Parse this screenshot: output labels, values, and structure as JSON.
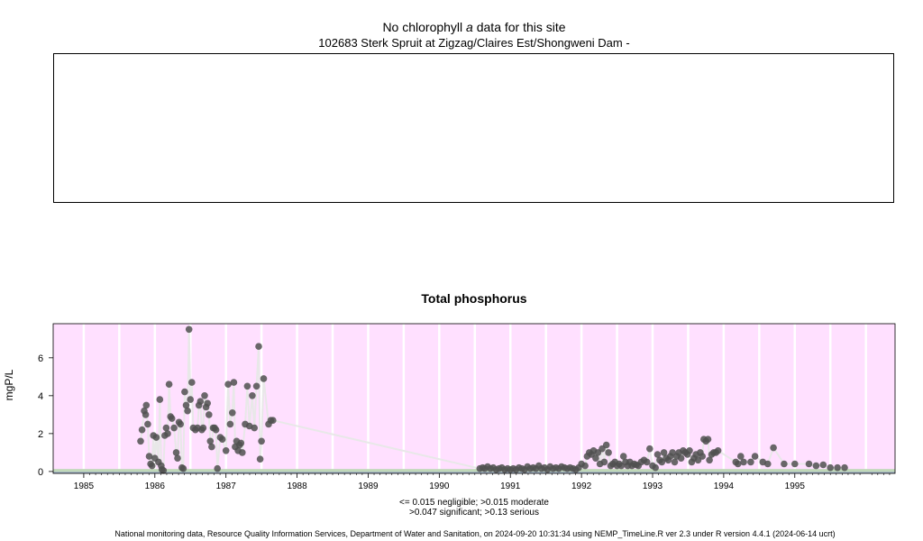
{
  "chlorophyll": {
    "title_prefix": "No chlorophyll",
    "title_italic": "a",
    "title_suffix": "data for this site",
    "subtitle": "102683 Sterk Spruit at Zigzag/Claires Est/Shongweni Dam -"
  },
  "chart_data": {
    "type": "scatter",
    "title": "Total phosphorus",
    "ylabel": "mgP/L",
    "xlabel": "",
    "xlim": [
      1984.57,
      1996.41
    ],
    "ylim": [
      -0.1,
      7.8
    ],
    "x_ticks": [
      1985,
      1986,
      1987,
      1988,
      1989,
      1990,
      1991,
      1992,
      1993,
      1994,
      1995
    ],
    "y_ticks": [
      0,
      2,
      4,
      6
    ],
    "grid": true,
    "background_color": "#ffe0ff",
    "band_colors": {
      "negligible": "#a0b0c8",
      "moderate": "#c0d8b8"
    },
    "point_color": "#505050",
    "line_color": "#e8e8e8",
    "thresholds": [
      0.015,
      0.047,
      0.13
    ],
    "series": [
      {
        "values": [
          [
            1985.8,
            1.6
          ],
          [
            1985.82,
            2.2
          ],
          [
            1985.85,
            3.2
          ],
          [
            1985.87,
            3.0
          ],
          [
            1985.88,
            3.5
          ],
          [
            1985.9,
            2.5
          ],
          [
            1985.92,
            0.8
          ],
          [
            1985.94,
            0.4
          ],
          [
            1985.96,
            0.3
          ],
          [
            1985.98,
            1.9
          ],
          [
            1986.0,
            0.7
          ],
          [
            1986.02,
            1.8
          ],
          [
            1986.05,
            0.5
          ],
          [
            1986.07,
            3.8
          ],
          [
            1986.09,
            0.3
          ],
          [
            1986.1,
            0.1
          ],
          [
            1986.12,
            0.05
          ],
          [
            1986.14,
            1.9
          ],
          [
            1986.16,
            2.3
          ],
          [
            1986.18,
            2.0
          ],
          [
            1986.2,
            4.6
          ],
          [
            1986.22,
            2.9
          ],
          [
            1986.24,
            2.8
          ],
          [
            1986.27,
            2.3
          ],
          [
            1986.3,
            1.0
          ],
          [
            1986.32,
            0.7
          ],
          [
            1986.34,
            2.6
          ],
          [
            1986.36,
            2.5
          ],
          [
            1986.38,
            0.2
          ],
          [
            1986.4,
            0.15
          ],
          [
            1986.42,
            4.2
          ],
          [
            1986.44,
            3.5
          ],
          [
            1986.46,
            3.2
          ],
          [
            1986.48,
            7.5
          ],
          [
            1986.5,
            3.8
          ],
          [
            1986.52,
            4.7
          ],
          [
            1986.54,
            2.3
          ],
          [
            1986.57,
            2.2
          ],
          [
            1986.6,
            2.3
          ],
          [
            1986.62,
            3.5
          ],
          [
            1986.64,
            3.7
          ],
          [
            1986.66,
            2.2
          ],
          [
            1986.68,
            2.3
          ],
          [
            1986.7,
            4.0
          ],
          [
            1986.72,
            3.4
          ],
          [
            1986.74,
            3.6
          ],
          [
            1986.76,
            3.0
          ],
          [
            1986.78,
            1.6
          ],
          [
            1986.8,
            1.3
          ],
          [
            1986.82,
            2.3
          ],
          [
            1986.84,
            2.3
          ],
          [
            1986.86,
            2.2
          ],
          [
            1986.88,
            0.15
          ],
          [
            1986.92,
            1.8
          ],
          [
            1986.95,
            1.7
          ],
          [
            1987.0,
            1.1
          ],
          [
            1987.03,
            4.6
          ],
          [
            1987.06,
            2.5
          ],
          [
            1987.09,
            3.1
          ],
          [
            1987.11,
            4.7
          ],
          [
            1987.13,
            1.3
          ],
          [
            1987.15,
            1.6
          ],
          [
            1987.17,
            1.1
          ],
          [
            1987.19,
            1.4
          ],
          [
            1987.21,
            1.5
          ],
          [
            1987.23,
            1.0
          ],
          [
            1987.27,
            2.5
          ],
          [
            1987.3,
            4.5
          ],
          [
            1987.33,
            2.4
          ],
          [
            1987.37,
            4.0
          ],
          [
            1987.4,
            2.3
          ],
          [
            1987.43,
            4.5
          ],
          [
            1987.46,
            6.6
          ],
          [
            1987.48,
            0.65
          ],
          [
            1987.5,
            1.6
          ],
          [
            1987.53,
            4.9
          ],
          [
            1987.6,
            2.5
          ],
          [
            1987.63,
            2.7
          ],
          [
            1987.66,
            2.7
          ],
          [
            1990.57,
            0.15
          ],
          [
            1990.61,
            0.2
          ],
          [
            1990.64,
            0.15
          ],
          [
            1990.68,
            0.25
          ],
          [
            1990.72,
            0.15
          ],
          [
            1990.76,
            0.2
          ],
          [
            1990.8,
            0.1
          ],
          [
            1990.84,
            0.15
          ],
          [
            1990.88,
            0.2
          ],
          [
            1990.92,
            0.1
          ],
          [
            1990.96,
            0.15
          ],
          [
            1991.0,
            0.1
          ],
          [
            1991.04,
            0.15
          ],
          [
            1991.08,
            0.1
          ],
          [
            1991.12,
            0.2
          ],
          [
            1991.16,
            0.15
          ],
          [
            1991.2,
            0.1
          ],
          [
            1991.24,
            0.25
          ],
          [
            1991.28,
            0.15
          ],
          [
            1991.32,
            0.2
          ],
          [
            1991.36,
            0.15
          ],
          [
            1991.4,
            0.3
          ],
          [
            1991.44,
            0.15
          ],
          [
            1991.48,
            0.2
          ],
          [
            1991.52,
            0.1
          ],
          [
            1991.56,
            0.25
          ],
          [
            1991.6,
            0.15
          ],
          [
            1991.64,
            0.2
          ],
          [
            1991.68,
            0.15
          ],
          [
            1991.72,
            0.25
          ],
          [
            1991.76,
            0.2
          ],
          [
            1991.8,
            0.15
          ],
          [
            1991.84,
            0.2
          ],
          [
            1991.88,
            0.15
          ],
          [
            1991.92,
            0.1
          ],
          [
            1991.96,
            0.2
          ],
          [
            1992.0,
            0.4
          ],
          [
            1992.05,
            0.3
          ],
          [
            1992.08,
            0.8
          ],
          [
            1992.11,
            1.0
          ],
          [
            1992.14,
            0.9
          ],
          [
            1992.17,
            1.1
          ],
          [
            1992.2,
            0.7
          ],
          [
            1992.23,
            1.0
          ],
          [
            1992.26,
            0.4
          ],
          [
            1992.29,
            1.2
          ],
          [
            1992.32,
            0.5
          ],
          [
            1992.35,
            1.4
          ],
          [
            1992.38,
            1.0
          ],
          [
            1992.41,
            0.3
          ],
          [
            1992.44,
            0.4
          ],
          [
            1992.47,
            0.5
          ],
          [
            1992.5,
            0.3
          ],
          [
            1992.53,
            0.4
          ],
          [
            1992.56,
            0.3
          ],
          [
            1992.59,
            0.8
          ],
          [
            1992.62,
            0.5
          ],
          [
            1992.65,
            0.3
          ],
          [
            1992.68,
            0.5
          ],
          [
            1992.71,
            0.3
          ],
          [
            1992.74,
            0.4
          ],
          [
            1992.77,
            0.35
          ],
          [
            1992.8,
            0.3
          ],
          [
            1992.84,
            0.5
          ],
          [
            1992.88,
            0.6
          ],
          [
            1992.92,
            0.5
          ],
          [
            1992.96,
            1.2
          ],
          [
            1993.0,
            0.3
          ],
          [
            1993.04,
            0.2
          ],
          [
            1993.07,
            0.9
          ],
          [
            1993.1,
            0.6
          ],
          [
            1993.13,
            0.5
          ],
          [
            1993.16,
            1.0
          ],
          [
            1993.19,
            0.7
          ],
          [
            1993.22,
            0.6
          ],
          [
            1993.25,
            0.8
          ],
          [
            1993.28,
            1.0
          ],
          [
            1993.31,
            0.5
          ],
          [
            1993.34,
            0.8
          ],
          [
            1993.37,
            1.0
          ],
          [
            1993.4,
            0.7
          ],
          [
            1993.43,
            1.1
          ],
          [
            1993.46,
            1.0
          ],
          [
            1993.49,
            0.9
          ],
          [
            1993.52,
            1.1
          ],
          [
            1993.55,
            0.5
          ],
          [
            1993.58,
            0.7
          ],
          [
            1993.61,
            0.9
          ],
          [
            1993.64,
            0.6
          ],
          [
            1993.67,
            1.0
          ],
          [
            1993.7,
            0.8
          ],
          [
            1993.72,
            1.7
          ],
          [
            1993.75,
            1.6
          ],
          [
            1993.78,
            1.7
          ],
          [
            1993.8,
            0.6
          ],
          [
            1993.83,
            0.9
          ],
          [
            1993.86,
            1.0
          ],
          [
            1993.89,
            1.0
          ],
          [
            1993.92,
            1.1
          ],
          [
            1994.17,
            0.5
          ],
          [
            1994.2,
            0.4
          ],
          [
            1994.24,
            0.8
          ],
          [
            1994.28,
            0.5
          ],
          [
            1994.38,
            0.5
          ],
          [
            1994.44,
            0.8
          ],
          [
            1994.55,
            0.5
          ],
          [
            1994.62,
            0.4
          ],
          [
            1994.7,
            1.25
          ],
          [
            1994.85,
            0.4
          ],
          [
            1995.0,
            0.4
          ],
          [
            1995.2,
            0.4
          ],
          [
            1995.3,
            0.3
          ],
          [
            1995.4,
            0.35
          ],
          [
            1995.5,
            0.2
          ],
          [
            1995.6,
            0.2
          ],
          [
            1995.7,
            0.2
          ]
        ]
      }
    ]
  },
  "legend": {
    "line1": "<= 0.015 negligible; >0.015 moderate",
    "line2": ">0.047 significant; >0.13 serious"
  },
  "footer": "National monitoring data, Resource Quality Information Services, Department of Water and Sanitation, on 2024-09-20 10:31:34 using NEMP_TimeLine.R ver 2.3 under R version 4.4.1 (2024-06-14 ucrt)"
}
